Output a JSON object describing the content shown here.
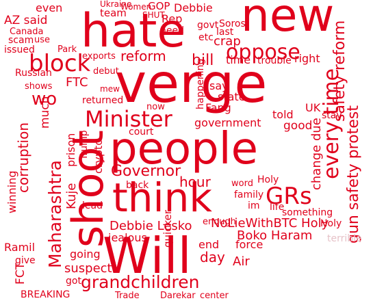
{
  "accent_color": "#e0001b",
  "muted_color": "#e6c2c8",
  "words": [
    {
      "text": "new",
      "size": "large"
    },
    {
      "text": "hate",
      "size": "large"
    },
    {
      "text": "verge",
      "size": "large"
    },
    {
      "text": "people",
      "size": "large"
    },
    {
      "text": "think",
      "size": "large"
    },
    {
      "text": "Will",
      "size": "large"
    },
    {
      "text": "shoot",
      "size": "large"
    },
    {
      "text": "grandchildren",
      "size": "large"
    },
    {
      "text": "oppose",
      "size": "medium"
    },
    {
      "text": "block",
      "size": "medium"
    },
    {
      "text": "Minister",
      "size": "medium"
    },
    {
      "text": "every time",
      "size": "medium"
    },
    {
      "text": "Maharashtra",
      "size": "medium"
    },
    {
      "text": "GRs",
      "size": "medium"
    },
    {
      "text": "reform",
      "size": "medium"
    },
    {
      "text": "bill",
      "size": "medium"
    },
    {
      "text": "Governor",
      "size": "medium"
    },
    {
      "text": "hour",
      "size": "medium"
    },
    {
      "text": "crap",
      "size": "medium"
    },
    {
      "text": "safety reform",
      "size": "medium"
    },
    {
      "text": "gun safety protest",
      "size": "medium"
    },
    {
      "text": "change due",
      "size": "medium"
    },
    {
      "text": "Debbie Lesko",
      "size": "medium"
    },
    {
      "text": "NoLieWithBTC Holy",
      "size": "medium"
    },
    {
      "text": "Boko Haram",
      "size": "medium"
    },
    {
      "text": "suspect",
      "size": "medium"
    },
    {
      "text": "day",
      "size": "medium"
    },
    {
      "text": "Rep",
      "size": "medium"
    },
    {
      "text": "Debbie",
      "size": "small"
    },
    {
      "text": "team",
      "size": "small"
    },
    {
      "text": "SHUT",
      "size": "small"
    },
    {
      "text": "GOP",
      "size": "small"
    },
    {
      "text": "Women",
      "size": "small"
    },
    {
      "text": "Soros",
      "size": "small"
    },
    {
      "text": "need",
      "size": "small"
    },
    {
      "text": "govt",
      "size": "small"
    },
    {
      "text": "AZ said",
      "size": "small"
    },
    {
      "text": "even",
      "size": "small"
    },
    {
      "text": "Ukraine",
      "size": "small"
    },
    {
      "text": "last",
      "size": "small"
    },
    {
      "text": "etc",
      "size": "small"
    },
    {
      "text": "Canada",
      "size": "small"
    },
    {
      "text": "scam",
      "size": "small"
    },
    {
      "text": "use",
      "size": "small"
    },
    {
      "text": "issued",
      "size": "small"
    },
    {
      "text": "Park",
      "size": "small"
    },
    {
      "text": "exports",
      "size": "small"
    },
    {
      "text": "Russian",
      "size": "small"
    },
    {
      "text": "debut",
      "size": "small"
    },
    {
      "text": "FTC",
      "size": "small"
    },
    {
      "text": "wo",
      "size": "small"
    },
    {
      "text": "shows",
      "size": "small"
    },
    {
      "text": "mew",
      "size": "small"
    },
    {
      "text": "returned",
      "size": "small"
    },
    {
      "text": "time",
      "size": "small"
    },
    {
      "text": "trouble",
      "size": "small"
    },
    {
      "text": "right",
      "size": "small"
    },
    {
      "text": "say",
      "size": "small"
    },
    {
      "text": "state",
      "size": "small"
    },
    {
      "text": "Fang",
      "size": "small"
    },
    {
      "text": "told",
      "size": "small"
    },
    {
      "text": "government",
      "size": "small"
    },
    {
      "text": "happening",
      "size": "small"
    },
    {
      "text": "UK",
      "size": "small"
    },
    {
      "text": "stay",
      "size": "small"
    },
    {
      "text": "good",
      "size": "small"
    },
    {
      "text": "now",
      "size": "small"
    },
    {
      "text": "court",
      "size": "small"
    },
    {
      "text": "much",
      "size": "small"
    },
    {
      "text": "corruption",
      "size": "small"
    },
    {
      "text": "prison",
      "size": "small"
    },
    {
      "text": "crypto",
      "size": "small"
    },
    {
      "text": "Trump",
      "size": "small"
    },
    {
      "text": "Kuje",
      "size": "small"
    },
    {
      "text": "back",
      "size": "small"
    },
    {
      "text": "family",
      "size": "small"
    },
    {
      "text": "im",
      "size": "small"
    },
    {
      "text": "life",
      "size": "small"
    },
    {
      "text": "something",
      "size": "small"
    },
    {
      "text": "Holy",
      "size": "small"
    },
    {
      "text": "lead",
      "size": "small"
    },
    {
      "text": "jealous",
      "size": "small"
    },
    {
      "text": "going",
      "size": "small"
    },
    {
      "text": "Ramil",
      "size": "small"
    },
    {
      "text": "give",
      "size": "small"
    },
    {
      "text": "FCT",
      "size": "small"
    },
    {
      "text": "got",
      "size": "small"
    },
    {
      "text": "BREAKING",
      "size": "small"
    },
    {
      "text": "Trade",
      "size": "small"
    },
    {
      "text": "Darekar",
      "size": "small"
    },
    {
      "text": "center",
      "size": "small"
    },
    {
      "text": "Air",
      "size": "small"
    },
    {
      "text": "force",
      "size": "small"
    },
    {
      "text": "end",
      "size": "small"
    },
    {
      "text": "quicker",
      "size": "small"
    },
    {
      "text": "enough",
      "size": "small"
    },
    {
      "text": "winning",
      "size": "small"
    },
    {
      "text": "word",
      "size": "small"
    },
    {
      "text": "Holy",
      "size": "small"
    },
    {
      "text": "terrible",
      "size": "muted"
    }
  ]
}
